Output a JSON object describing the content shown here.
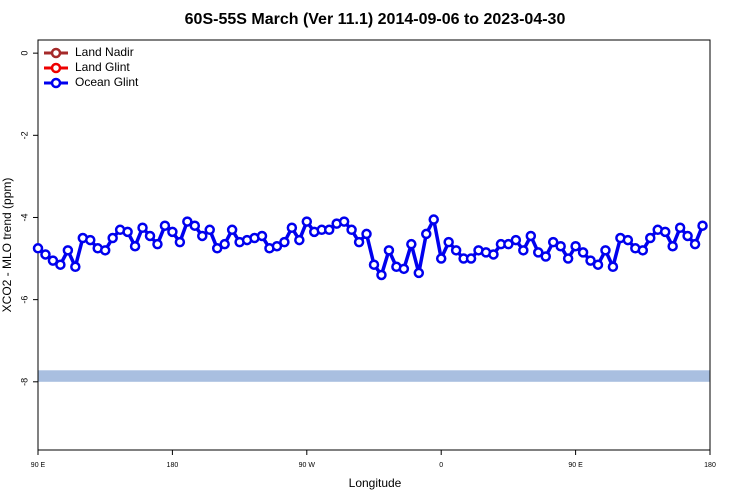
{
  "chart_data": {
    "type": "line",
    "title": "60S-55S March (Ver 11.1)   2014-09-06 to 2023-04-30",
    "x_label": "Longitude",
    "y_label": "XCO2 - MLO trend (ppm)",
    "xlim": [
      90,
      540
    ],
    "ylim": [
      -9.66,
      0.32
    ],
    "xticks": [
      {
        "value": 90,
        "label": "90 E"
      },
      {
        "value": 180,
        "label": "180"
      },
      {
        "value": 270,
        "label": "90 W"
      },
      {
        "value": 360,
        "label": "0"
      },
      {
        "value": 450,
        "label": "90 E"
      },
      {
        "value": 540,
        "label": "180"
      }
    ],
    "yticks": [
      0,
      -2,
      -4,
      -6,
      -8
    ],
    "legend_position": "top-left",
    "band": {
      "xlim": [
        90,
        540
      ],
      "ylim": [
        -8.0,
        -7.72
      ],
      "color": "#a9bfe0"
    },
    "x": [
      90,
      95,
      100,
      105,
      110,
      115,
      120,
      125,
      130,
      135,
      140,
      145,
      150,
      155,
      160,
      165,
      170,
      175,
      180,
      185,
      190,
      195,
      200,
      205,
      210,
      215,
      220,
      225,
      230,
      235,
      240,
      245,
      250,
      255,
      260,
      265,
      270,
      275,
      280,
      285,
      290,
      295,
      300,
      305,
      310,
      315,
      320,
      325,
      330,
      335,
      340,
      345,
      350,
      355,
      360,
      365,
      370,
      375,
      380,
      385,
      390,
      395,
      400,
      405,
      410,
      415,
      420,
      425,
      430,
      435,
      440,
      445,
      450,
      455,
      460,
      465,
      470,
      475,
      480,
      485,
      490,
      495,
      500,
      505,
      510,
      515,
      520,
      525,
      530,
      535
    ],
    "series": [
      {
        "name": "Land Nadir",
        "color": "#a52a2a",
        "values": [
          null,
          null,
          null,
          null,
          null,
          null,
          null,
          null,
          null,
          null,
          null,
          null,
          null,
          null,
          null,
          null,
          null,
          null,
          null,
          null,
          null,
          null,
          null,
          null,
          null,
          null,
          null,
          null,
          null,
          null,
          null,
          null,
          null,
          null,
          null,
          null,
          null,
          null,
          null,
          null,
          null,
          null,
          null,
          null,
          null,
          null,
          null,
          null,
          null,
          null,
          null,
          null,
          null,
          null,
          null,
          null,
          null,
          null,
          null,
          null,
          null,
          null,
          null,
          null,
          null,
          null,
          null,
          null,
          null,
          null,
          null,
          null,
          null,
          null,
          null,
          null,
          null,
          null,
          null,
          null,
          null,
          null,
          null,
          null,
          null,
          null,
          null,
          null,
          null,
          null
        ]
      },
      {
        "name": "Land Glint",
        "color": "#ee0000",
        "values": [
          null,
          null,
          null,
          null,
          null,
          null,
          null,
          null,
          null,
          null,
          null,
          null,
          null,
          null,
          null,
          null,
          null,
          null,
          null,
          null,
          null,
          null,
          null,
          null,
          null,
          null,
          null,
          null,
          null,
          null,
          null,
          null,
          null,
          null,
          null,
          null,
          null,
          null,
          null,
          null,
          null,
          null,
          null,
          null,
          null,
          null,
          null,
          null,
          null,
          null,
          null,
          null,
          null,
          null,
          null,
          null,
          null,
          null,
          null,
          null,
          null,
          null,
          null,
          null,
          null,
          null,
          null,
          null,
          null,
          null,
          null,
          null,
          null,
          null,
          null,
          null,
          null,
          null,
          null,
          null,
          null,
          null,
          null,
          null,
          null,
          null,
          null,
          null,
          null,
          null
        ]
      },
      {
        "name": "Ocean Glint",
        "color": "#0000ee",
        "values": [
          -4.75,
          -4.9,
          -5.05,
          -5.15,
          -4.8,
          -5.2,
          -4.5,
          -4.55,
          -4.75,
          -4.8,
          -4.5,
          -4.3,
          -4.35,
          -4.7,
          -4.25,
          -4.45,
          -4.65,
          -4.2,
          -4.35,
          -4.6,
          -4.1,
          -4.2,
          -4.45,
          -4.3,
          -4.75,
          -4.65,
          -4.3,
          -4.6,
          -4.55,
          -4.5,
          -4.45,
          -4.75,
          -4.7,
          -4.6,
          -4.25,
          -4.55,
          -4.1,
          -4.35,
          -4.3,
          -4.3,
          -4.15,
          -4.1,
          -4.3,
          -4.6,
          -4.4,
          -5.15,
          -5.4,
          -4.8,
          -5.2,
          -5.25,
          -4.65,
          -5.35,
          -4.4,
          -4.05,
          -5.0,
          -4.6,
          -4.8,
          -5.0,
          -5.0,
          -4.8,
          -4.85,
          -4.9,
          -4.65,
          -4.65,
          -4.55,
          -4.8,
          -4.45,
          -4.85,
          -4.95,
          -4.6,
          -4.7,
          -5.0,
          -4.7,
          -4.85,
          -5.05,
          -5.15,
          -4.8,
          -5.2,
          -4.5,
          -4.55,
          -4.75,
          -4.8,
          -4.5,
          -4.3,
          -4.35,
          -4.7,
          -4.25,
          -4.45,
          -4.65,
          -4.2
        ]
      }
    ]
  }
}
